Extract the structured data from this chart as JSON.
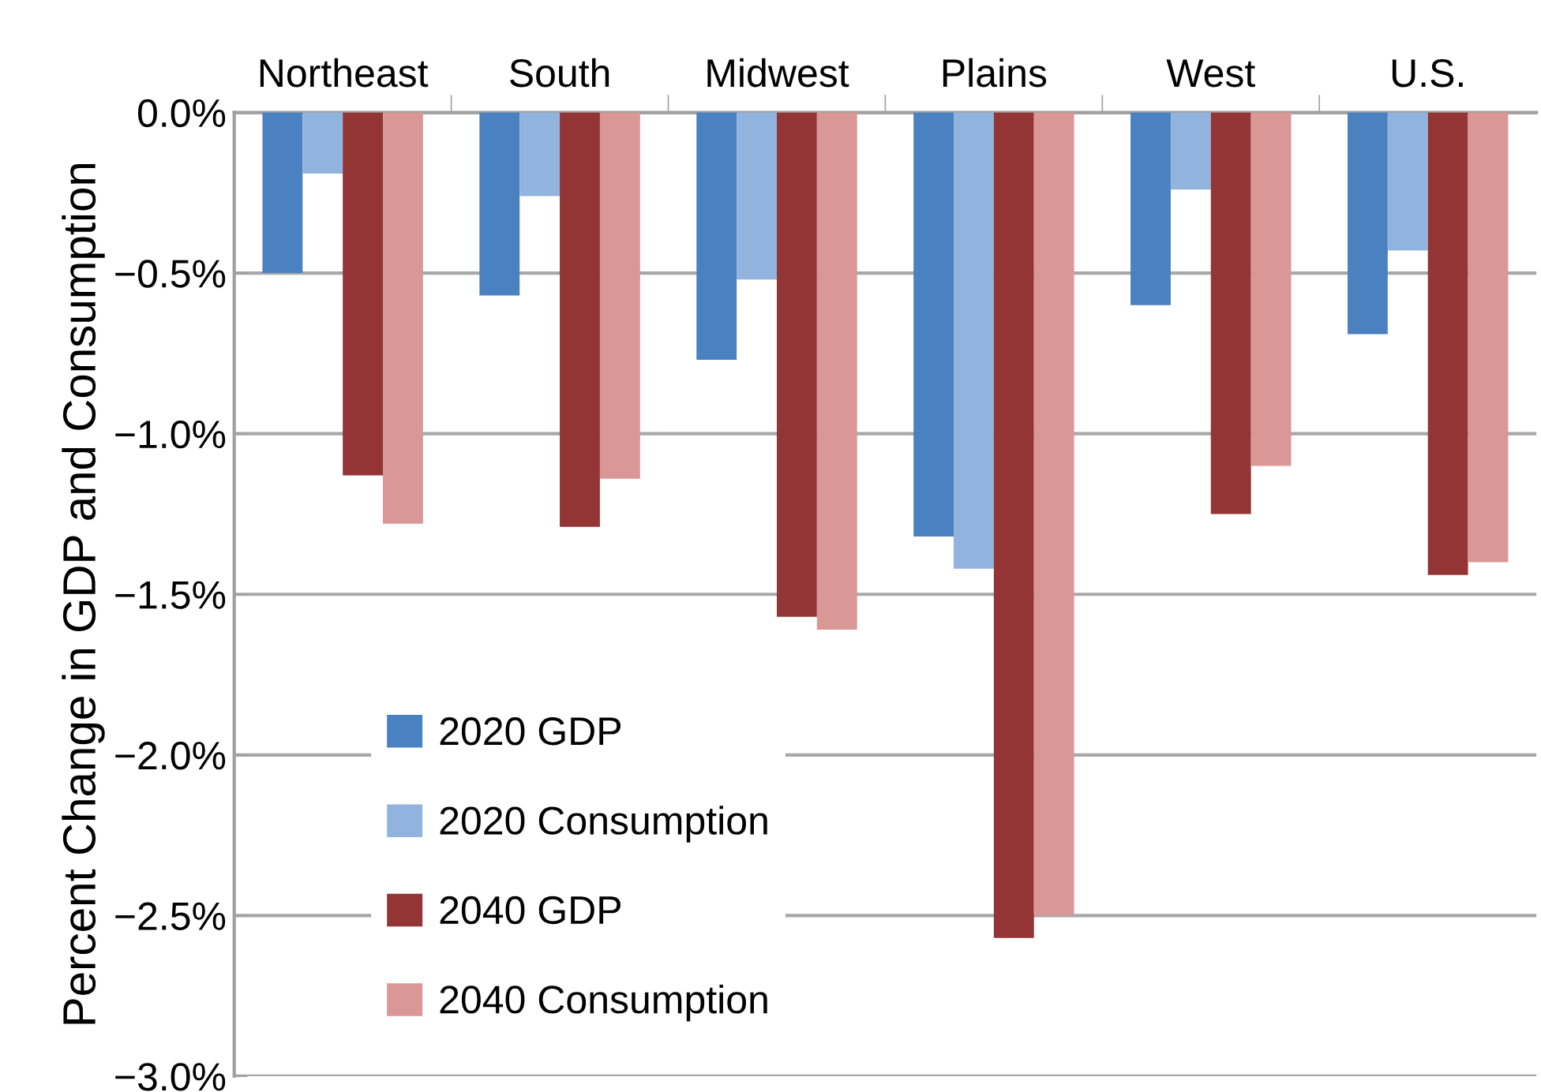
{
  "chart_data": {
    "type": "bar",
    "ylabel": "Percent Change in GDP and Consumption",
    "categories": [
      "Northeast",
      "South",
      "Midwest",
      "Plains",
      "West",
      "U.S."
    ],
    "series": [
      {
        "name": "2020 GDP",
        "color": "#4a81c0",
        "values": [
          -0.5,
          -0.57,
          -0.77,
          -1.32,
          -0.6,
          -0.69
        ]
      },
      {
        "name": "2020 Consumption",
        "color": "#91b4de",
        "values": [
          -0.19,
          -0.26,
          -0.52,
          -1.42,
          -0.24,
          -0.43
        ]
      },
      {
        "name": "2040 GDP",
        "color": "#943535",
        "values": [
          -1.13,
          -1.29,
          -1.57,
          -2.57,
          -1.25,
          -1.44
        ]
      },
      {
        "name": "2040 Consumption",
        "color": "#d99795",
        "values": [
          -1.28,
          -1.14,
          -1.61,
          -2.5,
          -1.1,
          -1.4
        ]
      }
    ],
    "ylim": [
      -3.0,
      0.0
    ],
    "yticks": [
      {
        "value": 0.0,
        "label": "0.0%"
      },
      {
        "value": -0.5,
        "label": "−0.5%"
      },
      {
        "value": -1.0,
        "label": "−1.0%"
      },
      {
        "value": -1.5,
        "label": "−1.5%"
      },
      {
        "value": -2.0,
        "label": "−2.0%"
      },
      {
        "value": -2.5,
        "label": "−2.5%"
      },
      {
        "value": -3.0,
        "label": "−3.0%"
      }
    ],
    "grid": "y",
    "legend": "bottom left"
  }
}
